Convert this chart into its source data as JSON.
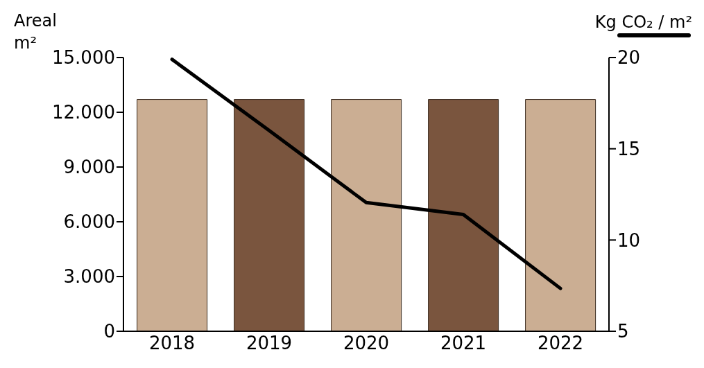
{
  "chart_data": {
    "type": "bar",
    "ylabel": "Areal m²",
    "categories": [
      "2018",
      "2019",
      "2020",
      "2021",
      "2022"
    ],
    "series": [
      {
        "colors": [
          "#cbae93",
          "#7a553e",
          "#cbae93",
          "#7a553e",
          "#cbae93"
        ],
        "values": [
          12700,
          12700,
          12700,
          12700,
          12700
        ]
      },
      {
        "type": "line",
        "name": "Kg CO₂ / m²",
        "color": "#000000",
        "axis": "y2",
        "values": [
          19.9,
          16.0,
          12.05,
          11.4,
          7.35
        ]
      }
    ],
    "ylim": [
      0,
      15000
    ],
    "yticks": [
      0,
      {
        "value": 3000,
        "label": "3.000"
      },
      {
        "value": 6000,
        "label": "6.000"
      },
      {
        "value": 9000,
        "label": "9.000"
      },
      {
        "value": 12000,
        "label": "12.000"
      },
      {
        "value": 15000,
        "label": "15.000"
      }
    ],
    "y2lim": [
      5,
      20
    ],
    "y2ticks": [
      5,
      10,
      15,
      20
    ],
    "legend": "top right",
    "grid": false,
    "marker": "none",
    "line_style": "solid"
  }
}
